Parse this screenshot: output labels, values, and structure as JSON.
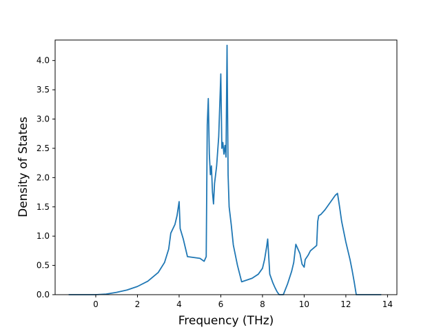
{
  "chart_data": {
    "type": "line",
    "title": "",
    "xlabel": "Frequency (THz)",
    "ylabel": "Density of States",
    "xlim": [
      -1.95,
      14.45
    ],
    "ylim": [
      0.0,
      4.35
    ],
    "xticks": [
      0,
      2,
      4,
      6,
      8,
      10,
      12,
      14
    ],
    "xtick_labels": [
      "0",
      "2",
      "4",
      "6",
      "8",
      "10",
      "12",
      "14"
    ],
    "yticks": [
      0.0,
      0.5,
      1.0,
      1.5,
      2.0,
      2.5,
      3.0,
      3.5,
      4.0
    ],
    "ytick_labels": [
      "0.0",
      "0.5",
      "1.0",
      "1.5",
      "2.0",
      "2.5",
      "3.0",
      "3.5",
      "4.0"
    ],
    "grid": false,
    "legend": "none",
    "series": [
      {
        "color": "#1f77b4",
        "x": [
          -1.3,
          0.0,
          0.5,
          1.0,
          1.5,
          2.0,
          2.5,
          3.0,
          3.3,
          3.5,
          3.6,
          3.8,
          3.9,
          4.0,
          4.05,
          4.2,
          4.3,
          4.4,
          5.0,
          5.2,
          5.3,
          5.35,
          5.4,
          5.45,
          5.5,
          5.55,
          5.6,
          5.65,
          5.7,
          5.8,
          5.9,
          6.0,
          6.05,
          6.1,
          6.15,
          6.2,
          6.25,
          6.3,
          6.35,
          6.4,
          6.5,
          6.6,
          6.8,
          7.0,
          7.5,
          7.8,
          8.0,
          8.1,
          8.2,
          8.25,
          8.35,
          8.5,
          8.6,
          8.7,
          8.8,
          9.0,
          9.2,
          9.4,
          9.5,
          9.6,
          9.8,
          9.9,
          10.0,
          10.05,
          10.2,
          10.3,
          10.6,
          10.65,
          10.7,
          10.8,
          11.0,
          11.3,
          11.5,
          11.6,
          11.7,
          11.8,
          12.0,
          12.2,
          12.3,
          12.4,
          12.5,
          13.7
        ],
        "y": [
          0.0,
          0.0,
          0.01,
          0.04,
          0.08,
          0.14,
          0.23,
          0.38,
          0.55,
          0.78,
          1.05,
          1.2,
          1.35,
          1.59,
          1.13,
          0.95,
          0.8,
          0.65,
          0.62,
          0.57,
          0.65,
          2.9,
          3.35,
          2.4,
          2.05,
          2.2,
          1.75,
          1.55,
          1.9,
          2.2,
          2.7,
          3.77,
          2.5,
          2.6,
          2.4,
          2.55,
          2.35,
          4.26,
          2.05,
          1.5,
          1.2,
          0.85,
          0.5,
          0.22,
          0.28,
          0.35,
          0.45,
          0.6,
          0.82,
          0.95,
          0.35,
          0.2,
          0.12,
          0.05,
          0.0,
          0.0,
          0.18,
          0.4,
          0.55,
          0.86,
          0.7,
          0.52,
          0.47,
          0.6,
          0.68,
          0.75,
          0.84,
          1.25,
          1.35,
          1.37,
          1.45,
          1.6,
          1.7,
          1.73,
          1.5,
          1.25,
          0.9,
          0.6,
          0.42,
          0.22,
          0.0,
          0.0
        ]
      }
    ]
  }
}
